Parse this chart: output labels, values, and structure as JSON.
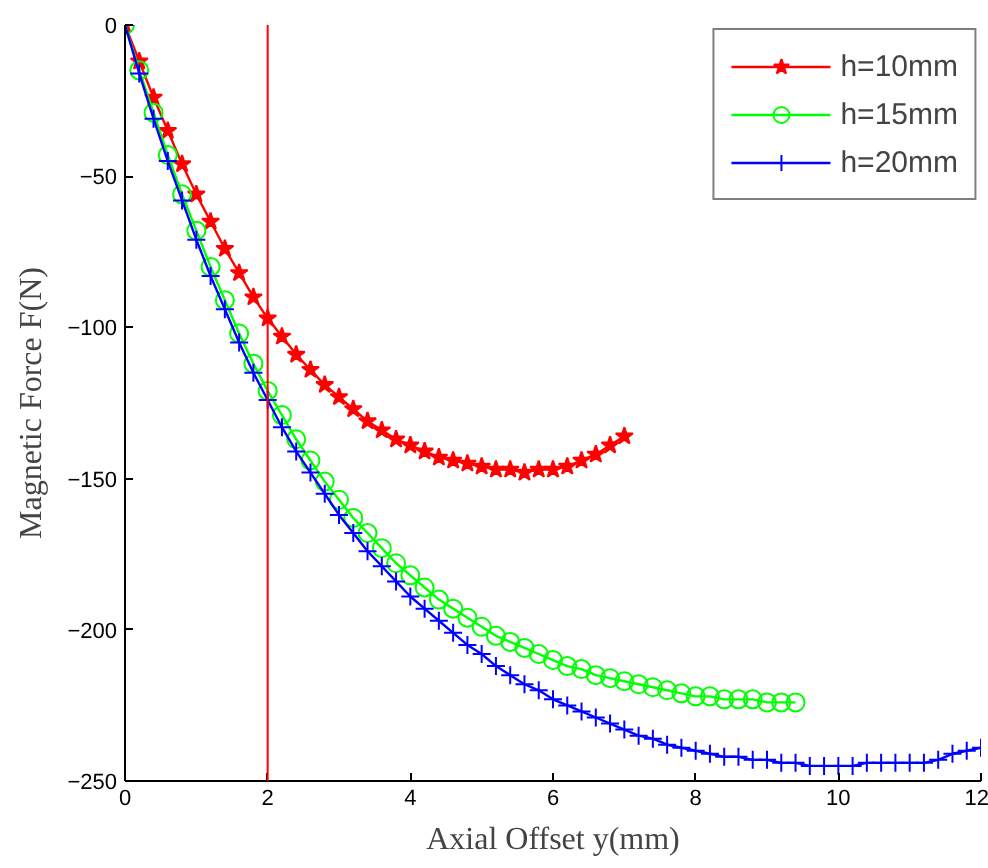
{
  "chart_data": {
    "type": "line",
    "xlabel": "Axial Offset y(mm)",
    "ylabel": "Magnetic Force F(N)",
    "xlim": [
      0,
      12
    ],
    "ylim": [
      -250,
      0
    ],
    "xticks": [
      0,
      2,
      4,
      6,
      8,
      10,
      12
    ],
    "yticks": [
      -250,
      -200,
      -150,
      -100,
      -50,
      0
    ],
    "grid": false,
    "legend": "top right",
    "line_style": "solid",
    "ref_lines": [
      {
        "axis": "x",
        "value": 2,
        "color": "#ff0000"
      }
    ],
    "series": [
      {
        "name": "h=10mm",
        "color": "#ff0000",
        "marker": "star",
        "x": [
          0,
          0.2,
          0.4,
          0.6,
          0.8,
          1.0,
          1.2,
          1.4,
          1.6,
          1.8,
          2.0,
          2.2,
          2.4,
          2.6,
          2.8,
          3.0,
          3.2,
          3.4,
          3.6,
          3.8,
          4.0,
          4.2,
          4.4,
          4.6,
          4.8,
          5.0,
          5.2,
          5.4,
          5.6,
          5.8,
          6.0,
          6.2,
          6.4,
          6.6,
          6.8,
          7.0
        ],
        "values": [
          0,
          -12,
          -24,
          -35,
          -46,
          -56,
          -65,
          -74,
          -82,
          -90,
          -97,
          -103,
          -109,
          -114,
          -119,
          -123,
          -127,
          -131,
          -134,
          -137,
          -139,
          -141,
          -143,
          -144,
          -145,
          -146,
          -147,
          -147,
          -148,
          -147,
          -147,
          -146,
          -144,
          -142,
          -139,
          -136
        ]
      },
      {
        "name": "h=15mm",
        "color": "#00ff00",
        "marker": "circle",
        "x": [
          0,
          0.2,
          0.4,
          0.6,
          0.8,
          1.0,
          1.2,
          1.4,
          1.6,
          1.8,
          2.0,
          2.2,
          2.4,
          2.6,
          2.8,
          3.0,
          3.2,
          3.4,
          3.6,
          3.8,
          4.0,
          4.2,
          4.4,
          4.6,
          4.8,
          5.0,
          5.2,
          5.4,
          5.6,
          5.8,
          6.0,
          6.2,
          6.4,
          6.6,
          6.8,
          7.0,
          7.2,
          7.4,
          7.6,
          7.8,
          8.0,
          8.2,
          8.4,
          8.6,
          8.8,
          9.0,
          9.2,
          9.4
        ],
        "values": [
          0,
          -15,
          -29,
          -43,
          -56,
          -68,
          -80,
          -91,
          -102,
          -112,
          -121,
          -129,
          -137,
          -144,
          -151,
          -157,
          -163,
          -168,
          -173,
          -178,
          -182,
          -186,
          -190,
          -193,
          -196,
          -199,
          -202,
          -204,
          -206,
          -208,
          -210,
          -212,
          -213,
          -215,
          -216,
          -217,
          -218,
          -219,
          -220,
          -221,
          -222,
          -222,
          -223,
          -223,
          -223,
          -224,
          -224,
          -224
        ]
      },
      {
        "name": "h=20mm",
        "color": "#0000ff",
        "marker": "cross",
        "x": [
          0,
          0.2,
          0.4,
          0.6,
          0.8,
          1.0,
          1.2,
          1.4,
          1.6,
          1.8,
          2.0,
          2.2,
          2.4,
          2.6,
          2.8,
          3.0,
          3.2,
          3.4,
          3.6,
          3.8,
          4.0,
          4.2,
          4.4,
          4.6,
          4.8,
          5.0,
          5.2,
          5.4,
          5.6,
          5.8,
          6.0,
          6.2,
          6.4,
          6.6,
          6.8,
          7.0,
          7.2,
          7.4,
          7.6,
          7.8,
          8.0,
          8.2,
          8.4,
          8.6,
          8.8,
          9.0,
          9.2,
          9.4,
          9.6,
          9.8,
          10.0,
          10.2,
          10.4,
          10.6,
          10.8,
          11.0,
          11.2,
          11.4,
          11.6,
          11.8,
          12.0
        ],
        "values": [
          0,
          -16,
          -31,
          -45,
          -58,
          -71,
          -83,
          -94,
          -105,
          -115,
          -124,
          -133,
          -141,
          -148,
          -155,
          -162,
          -168,
          -174,
          -179,
          -184,
          -189,
          -193,
          -197,
          -201,
          -205,
          -208,
          -212,
          -215,
          -218,
          -220,
          -223,
          -225,
          -227,
          -229,
          -231,
          -233,
          -235,
          -236,
          -238,
          -239,
          -240,
          -241,
          -242,
          -242,
          -243,
          -243,
          -244,
          -244,
          -245,
          -245,
          -245,
          -245,
          -244,
          -244,
          -244,
          -244,
          -244,
          -243,
          -241,
          -240,
          -239
        ]
      }
    ]
  }
}
